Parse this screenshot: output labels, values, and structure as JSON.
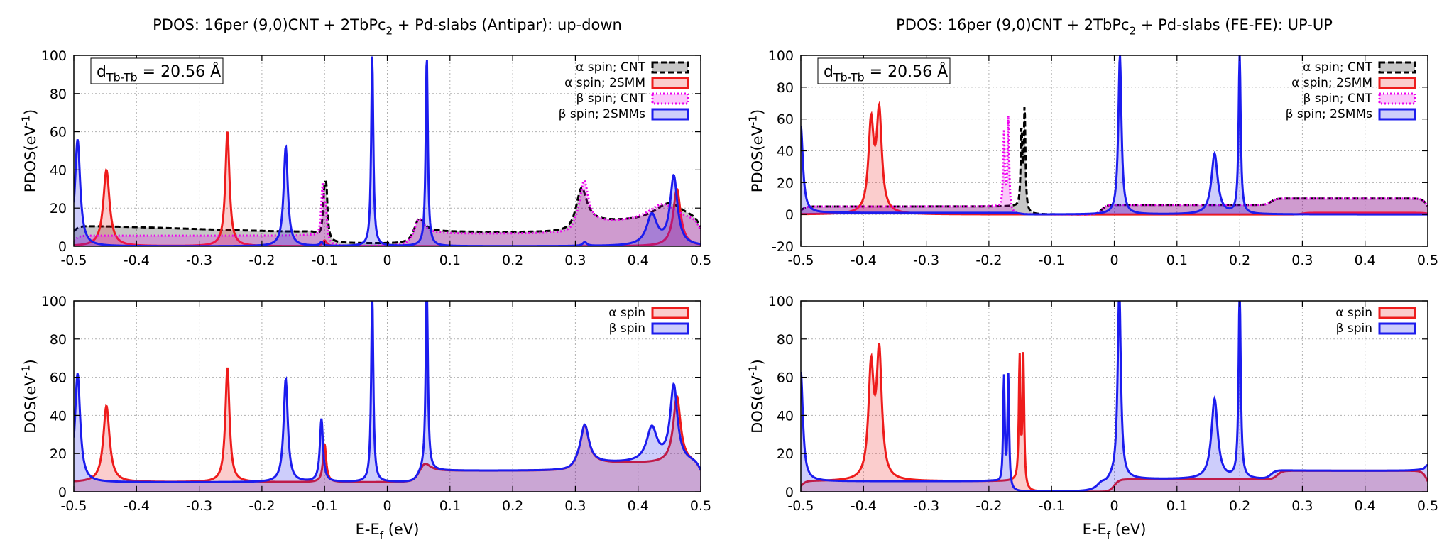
{
  "colors": {
    "alpha": "#ee1c1c",
    "beta": "#1c1cee",
    "cnt_alpha": "#000000",
    "cnt_beta": "#ee00ee",
    "grid": "#b0b0b0"
  },
  "chart_data": [
    {
      "type": "area",
      "title_main": "PDOS: 16per (9,0)CNT + 2TbPc",
      "title_sub": "2",
      "title_tail": " + Pd-slabs (Antipar): up-down",
      "ylabel_main": "PDOS(eV",
      "ylabel_sup": "-1",
      "ylabel_tail": ")",
      "xlabel": "",
      "xlim": [
        -0.5,
        0.5
      ],
      "ylim": [
        0,
        100
      ],
      "xticks": [
        "-0.5",
        "-0.4",
        "-0.3",
        "-0.2",
        "-0.1",
        "0",
        "0.1",
        "0.2",
        "0.3",
        "0.4",
        "0.5"
      ],
      "yticks": [
        "0",
        "20",
        "40",
        "60",
        "80",
        "100"
      ],
      "grid": true,
      "legend_position": "top-right",
      "annotation": {
        "main": "d",
        "sub": "Tb-Tb",
        "tail": " = 20.56 Å"
      },
      "series": [
        {
          "name": "α spin; CNT",
          "style": "dashed",
          "color": "#000000",
          "baseline": 0,
          "peaks": [
            [
              -0.5,
              5,
              0.3
            ],
            [
              -0.1,
              25,
              0.003
            ],
            [
              -0.097,
              18,
              0.002
            ],
            [
              0.05,
              8,
              0.01
            ],
            [
              0.31,
              18,
              0.01
            ],
            [
              0.45,
              10,
              0.03
            ]
          ],
          "plateaus": [
            [
              -0.5,
              -0.11,
              5.5
            ],
            [
              0.045,
              0.3,
              6.5
            ],
            [
              0.3,
              0.5,
              12
            ]
          ]
        },
        {
          "name": "α spin; 2SMM",
          "style": "solid",
          "color": "#ee1c1c",
          "baseline": 0,
          "peaks": [
            [
              -0.448,
              40,
              0.006
            ],
            [
              -0.255,
              60,
              0.004
            ],
            [
              -0.1,
              3,
              0.004
            ],
            [
              0.462,
              30,
              0.007
            ]
          ],
          "plateaus": []
        },
        {
          "name": "β spin; CNT",
          "style": "dotted",
          "color": "#ee00ee",
          "baseline": 0,
          "peaks": [
            [
              -0.103,
              30,
              0.003
            ],
            [
              -0.098,
              15,
              0.002
            ],
            [
              0.05,
              9,
              0.01
            ],
            [
              0.314,
              22,
              0.008
            ],
            [
              0.44,
              10,
              0.03
            ]
          ],
          "plateaus": [
            [
              -0.5,
              -0.11,
              5.5
            ],
            [
              0.045,
              0.3,
              6.5
            ],
            [
              0.3,
              0.5,
              12
            ]
          ]
        },
        {
          "name": "β spin; 2SMMs",
          "style": "solid",
          "color": "#1c1cee",
          "baseline": 0,
          "peaks": [
            [
              -0.494,
              56,
              0.005
            ],
            [
              -0.162,
              52,
              0.004
            ],
            [
              -0.105,
              2,
              0.003
            ],
            [
              -0.024,
              100,
              0.002
            ],
            [
              0.063,
              100,
              0.002
            ],
            [
              0.315,
              2,
              0.004
            ],
            [
              0.422,
              16,
              0.01
            ],
            [
              0.457,
              36,
              0.007
            ]
          ],
          "plateaus": []
        }
      ]
    },
    {
      "type": "area",
      "title_main": "PDOS: 16per (9,0)CNT + 2TbPc",
      "title_sub": "2",
      "title_tail": " + Pd-slabs (FE-FE): UP-UP",
      "ylabel_main": "PDOS(eV",
      "ylabel_sup": "-1",
      "ylabel_tail": ")",
      "xlabel": "",
      "xlim": [
        -0.5,
        0.5
      ],
      "ylim": [
        -20,
        100
      ],
      "xticks": [
        "-0.5",
        "-0.4",
        "-0.3",
        "-0.2",
        "-0.1",
        "0",
        "0.1",
        "0.2",
        "0.3",
        "0.4",
        "0.5"
      ],
      "yticks": [
        "-20",
        "0",
        "20",
        "40",
        "60",
        "80",
        "100"
      ],
      "grid": true,
      "legend_position": "top-right",
      "annotation": {
        "main": "d",
        "sub": "Tb-Tb",
        "tail": " = 20.56 Å"
      },
      "series": [
        {
          "name": "α spin; CNT",
          "style": "dashed",
          "color": "#000000",
          "baseline": 0,
          "peaks": [
            [
              -0.148,
              50,
              0.0015
            ],
            [
              -0.143,
              65,
              0.0015
            ]
          ],
          "plateaus": [
            [
              -0.5,
              -0.15,
              5
            ],
            [
              -0.02,
              0.25,
              6
            ],
            [
              0.25,
              0.5,
              10
            ]
          ]
        },
        {
          "name": "α spin; 2SMM",
          "style": "solid",
          "color": "#ee1c1c",
          "baseline": 0,
          "peaks": [
            [
              -0.388,
              55,
              0.005
            ],
            [
              -0.375,
              62,
              0.005
            ]
          ],
          "plateaus": [
            [
              0.3,
              0.5,
              1
            ]
          ]
        },
        {
          "name": "β spin; CNT",
          "style": "dotted",
          "color": "#ee00ee",
          "baseline": 0,
          "peaks": [
            [
              -0.176,
              50,
              0.0015
            ],
            [
              -0.169,
              60,
              0.0015
            ]
          ],
          "plateaus": [
            [
              -0.5,
              -0.18,
              5
            ],
            [
              -0.02,
              0.25,
              6
            ],
            [
              0.25,
              0.5,
              10
            ]
          ]
        },
        {
          "name": "β spin; 2SMMs",
          "style": "solid",
          "color": "#1c1cee",
          "baseline": 0,
          "peaks": [
            [
              -0.5,
              55,
              0.004
            ],
            [
              0.009,
              100,
              0.003
            ],
            [
              0.16,
              38,
              0.006
            ],
            [
              0.2,
              100,
              0.002
            ]
          ],
          "plateaus": [
            [
              -0.5,
              -0.15,
              1
            ]
          ]
        }
      ]
    },
    {
      "type": "area",
      "title_main": "",
      "title_sub": "",
      "title_tail": "",
      "ylabel_main": "DOS(eV",
      "ylabel_sup": "-1",
      "ylabel_tail": ")",
      "xlabel": "E-E",
      "xlabel_sub": "f",
      "xlabel_tail": " (eV)",
      "xlim": [
        -0.5,
        0.5
      ],
      "ylim": [
        0,
        100
      ],
      "xticks": [
        "-0.5",
        "-0.4",
        "-0.3",
        "-0.2",
        "-0.1",
        "0",
        "0.1",
        "0.2",
        "0.3",
        "0.4",
        "0.5"
      ],
      "yticks": [
        "0",
        "20",
        "40",
        "60",
        "80",
        "100"
      ],
      "grid": true,
      "legend_position": "top-right",
      "series": [
        {
          "name": "α spin",
          "style": "solid",
          "color": "#ee1c1c",
          "baseline": 5,
          "peaks": [
            [
              -0.448,
              40,
              0.006
            ],
            [
              -0.255,
              60,
              0.004
            ],
            [
              -0.1,
              20,
              0.003
            ],
            [
              0.06,
              4,
              0.01
            ],
            [
              0.315,
              20,
              0.008
            ],
            [
              0.462,
              35,
              0.007
            ]
          ],
          "plateaus": [
            [
              0.05,
              0.3,
              6
            ],
            [
              0.3,
              0.5,
              10
            ]
          ]
        },
        {
          "name": "β spin",
          "style": "solid",
          "color": "#1c1cee",
          "baseline": 5,
          "peaks": [
            [
              -0.494,
              57,
              0.005
            ],
            [
              -0.162,
              54,
              0.004
            ],
            [
              -0.105,
              33,
              0.003
            ],
            [
              -0.024,
              100,
              0.002
            ],
            [
              0.063,
              100,
              0.002
            ],
            [
              0.315,
              20,
              0.008
            ],
            [
              0.422,
              18,
              0.01
            ],
            [
              0.457,
              40,
              0.007
            ]
          ],
          "plateaus": [
            [
              0.05,
              0.3,
              6
            ],
            [
              0.3,
              0.5,
              10
            ]
          ]
        }
      ]
    },
    {
      "type": "area",
      "title_main": "",
      "title_sub": "",
      "title_tail": "",
      "ylabel_main": "DOS(eV",
      "ylabel_sup": "-1",
      "ylabel_tail": ")",
      "xlabel": "E-E",
      "xlabel_sub": "f",
      "xlabel_tail": " (eV)",
      "xlim": [
        -0.5,
        0.5
      ],
      "ylim": [
        0,
        100
      ],
      "xticks": [
        "-0.5",
        "-0.4",
        "-0.3",
        "-0.2",
        "-0.1",
        "0",
        "0.1",
        "0.2",
        "0.3",
        "0.4",
        "0.5"
      ],
      "yticks": [
        "0",
        "20",
        "40",
        "60",
        "80",
        "100"
      ],
      "grid": true,
      "legend_position": "top-right",
      "series": [
        {
          "name": "α spin",
          "style": "solid",
          "color": "#ee1c1c",
          "baseline": 0,
          "peaks": [
            [
              -0.388,
              57,
              0.005
            ],
            [
              -0.375,
              65,
              0.005
            ],
            [
              -0.151,
              66,
              0.0015
            ],
            [
              -0.145,
              68,
              0.0015
            ]
          ],
          "plateaus": [
            [
              -0.5,
              -0.15,
              5.5
            ],
            [
              0.0,
              0.26,
              6.5
            ],
            [
              0.26,
              0.5,
              11
            ]
          ]
        },
        {
          "name": "β spin",
          "style": "solid",
          "color": "#1c1cee",
          "baseline": 0,
          "peaks": [
            [
              -0.5,
              60,
              0.004
            ],
            [
              -0.176,
              58,
              0.0015
            ],
            [
              -0.169,
              60,
              0.0015
            ],
            [
              -0.02,
              4,
              0.01
            ],
            [
              0.008,
              100,
              0.003
            ],
            [
              0.16,
              42,
              0.006
            ],
            [
              0.2,
              100,
              0.002
            ],
            [
              0.5,
              8,
              0.005
            ]
          ],
          "plateaus": [
            [
              -0.5,
              -0.18,
              5.5
            ],
            [
              -0.01,
              0.25,
              6.5
            ],
            [
              0.25,
              0.5,
              11
            ]
          ]
        }
      ]
    }
  ]
}
